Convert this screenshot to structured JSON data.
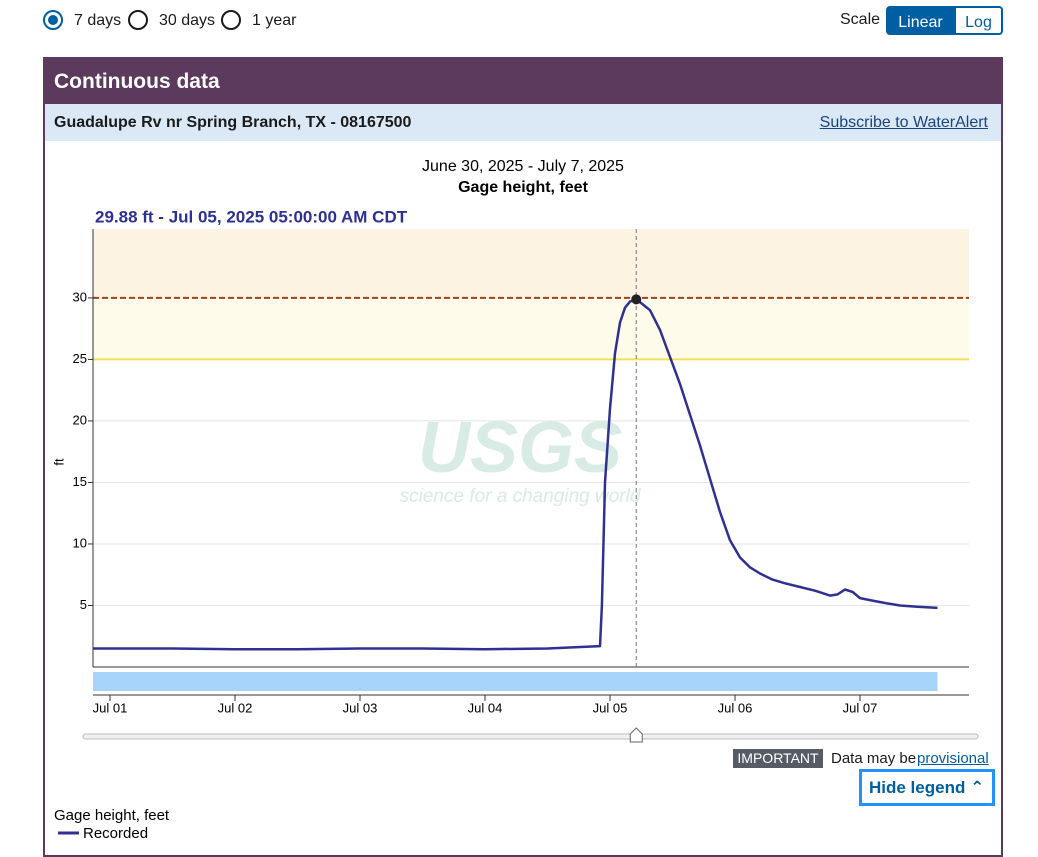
{
  "controls": {
    "periods": [
      "7 days",
      "30 days",
      "1 year"
    ],
    "scale_label": "Scale",
    "scale_options": [
      "Linear",
      "Log"
    ]
  },
  "panel": {
    "title": "Continuous data",
    "site": "Guadalupe Rv nr Spring Branch, TX - 08167500",
    "subscribe": "Subscribe to WaterAlert"
  },
  "notice": {
    "badge": "IMPORTANT",
    "text": "Data may be",
    "link": "provisional",
    "toggle": "Hide legend"
  },
  "chart_data": {
    "type": "line",
    "title": "June 30, 2025 - July 7, 2025",
    "subtitle": "Gage height, feet",
    "tooltip": "29.88 ft - Jul 05, 2025 05:00:00 AM CDT",
    "y_label": "ft",
    "watermark": {
      "logo": "USGS",
      "tagline": "science for a changing world"
    },
    "legend_title": "Gage height, feet",
    "xlim": [
      0.864,
      7.872
    ],
    "xticks": [
      {
        "value": 1,
        "label": "Jul 01"
      },
      {
        "value": 2,
        "label": "Jul 02"
      },
      {
        "value": 3,
        "label": "Jul 03"
      },
      {
        "value": 4,
        "label": "Jul 04"
      },
      {
        "value": 5,
        "label": "Jul 05"
      },
      {
        "value": 6,
        "label": "Jul 06"
      },
      {
        "value": 7,
        "label": "Jul 07"
      }
    ],
    "ylim": [
      0,
      35.6
    ],
    "yticks": [
      5,
      10,
      15,
      20,
      25,
      30
    ],
    "grid": true,
    "thresholds": [
      {
        "value": 30,
        "color": "#a0421a",
        "band": "#fcf3e3"
      },
      {
        "value": 25,
        "color": "#f2e15a",
        "band": "#fffbea"
      }
    ],
    "x": [
      0.864,
      1.5,
      2.0,
      2.5,
      3.0,
      3.5,
      4.0,
      4.5,
      4.92,
      4.935,
      4.96,
      5.0,
      5.04,
      5.08,
      5.12,
      5.16,
      5.21,
      5.26,
      5.32,
      5.4,
      5.48,
      5.56,
      5.64,
      5.72,
      5.8,
      5.88,
      5.96,
      6.04,
      6.12,
      6.2,
      6.3,
      6.4,
      6.52,
      6.64,
      6.76,
      6.82,
      6.88,
      6.94,
      7.0,
      7.1,
      7.2,
      7.32,
      7.46,
      7.62
    ],
    "series": [
      {
        "name": "Recorded",
        "color": "#2e3192",
        "values": [
          1.5,
          1.5,
          1.45,
          1.45,
          1.5,
          1.5,
          1.45,
          1.5,
          1.7,
          5,
          15,
          21,
          25.5,
          28,
          29.2,
          29.7,
          29.88,
          29.5,
          29,
          27.4,
          25.2,
          23,
          20.5,
          18,
          15.3,
          12.6,
          10.3,
          8.9,
          8.1,
          7.6,
          7.1,
          6.8,
          6.5,
          6.2,
          5.8,
          5.9,
          6.3,
          6.1,
          5.6,
          5.4,
          5.2,
          5.0,
          4.9,
          4.8
        ]
      }
    ]
  }
}
